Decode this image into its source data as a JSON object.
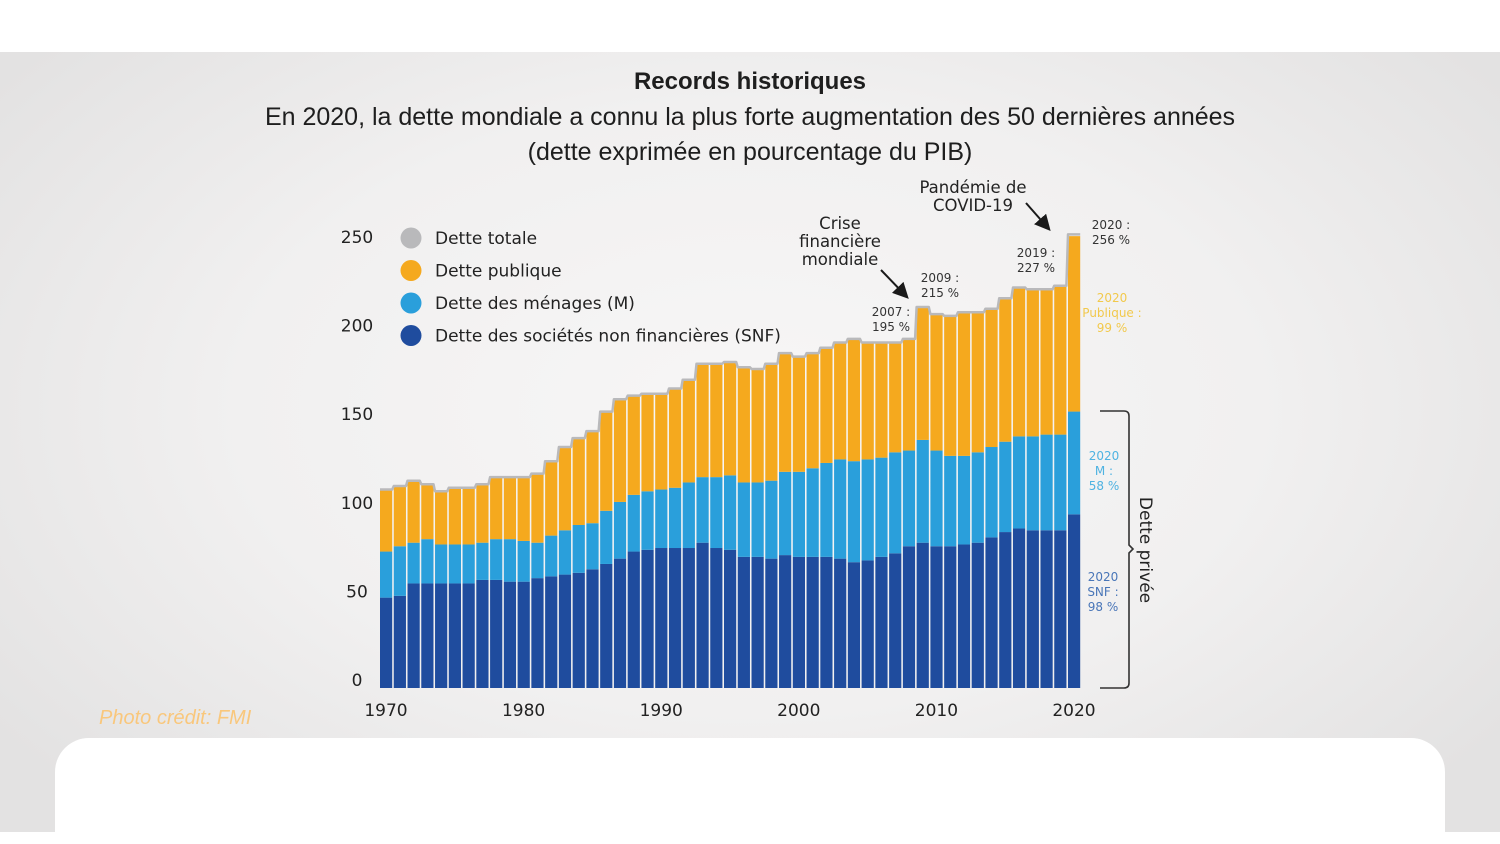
{
  "header": {
    "title": "Records historiques",
    "subtitle": "En 2020, la dette mondiale a connu la plus forte augmentation des 50 dernières années",
    "subtitle2": "(dette exprimée en pourcentage du PIB)"
  },
  "credit": "Photo crédit: FMI",
  "colors": {
    "total": "#b9b9bb",
    "public": "#f5a91e",
    "households": "#2a9fdb",
    "corporate": "#1f4c9e",
    "separator": "#dff1fb",
    "annotation_public": "#f2c94c",
    "annotation_m": "#4fb3e2",
    "annotation_snf": "#4a76b8"
  },
  "chart_data": {
    "type": "bar",
    "stacked": true,
    "title": "",
    "xlabel": "",
    "ylabel": "",
    "ylim": [
      0,
      250
    ],
    "yticks": [
      0,
      50,
      100,
      150,
      200,
      250
    ],
    "xticks": [
      1970,
      1980,
      1990,
      2000,
      2010,
      2020
    ],
    "categories": [
      1970,
      1971,
      1972,
      1973,
      1974,
      1975,
      1976,
      1977,
      1978,
      1979,
      1980,
      1981,
      1982,
      1983,
      1984,
      1985,
      1986,
      1987,
      1988,
      1989,
      1990,
      1991,
      1992,
      1993,
      1994,
      1995,
      1996,
      1997,
      1998,
      1999,
      2000,
      2001,
      2002,
      2003,
      2004,
      2005,
      2006,
      2007,
      2008,
      2009,
      2010,
      2011,
      2012,
      2013,
      2014,
      2015,
      2016,
      2017,
      2018,
      2019,
      2020
    ],
    "legend_position": "top-left",
    "legend": [
      {
        "key": "total",
        "label": "Dette totale"
      },
      {
        "key": "public",
        "label": "Dette publique"
      },
      {
        "key": "households",
        "label": "Dette des ménages (M)"
      },
      {
        "key": "corporate",
        "label": "Dette des sociétés non financières (SNF)"
      }
    ],
    "series": [
      {
        "name": "Dette des sociétés non financières (SNF)",
        "key": "corporate",
        "values": [
          51,
          52,
          59,
          59,
          59,
          59,
          59,
          61,
          61,
          60,
          60,
          62,
          63,
          64,
          65,
          67,
          70,
          73,
          77,
          78,
          79,
          79,
          79,
          82,
          79,
          78,
          74,
          74,
          73,
          75,
          74,
          74,
          74,
          73,
          71,
          72,
          74,
          76,
          80,
          82,
          80,
          80,
          81,
          82,
          85,
          88,
          90,
          89,
          89,
          89,
          98
        ]
      },
      {
        "name": "Dette des ménages (M)",
        "key": "households",
        "values": [
          26,
          28,
          23,
          25,
          22,
          22,
          22,
          21,
          23,
          24,
          23,
          20,
          23,
          25,
          27,
          26,
          30,
          32,
          32,
          33,
          33,
          34,
          37,
          37,
          40,
          42,
          42,
          42,
          44,
          47,
          48,
          50,
          53,
          56,
          57,
          57,
          56,
          57,
          54,
          58,
          54,
          51,
          50,
          51,
          51,
          51,
          52,
          53,
          54,
          54,
          58
        ]
      },
      {
        "name": "Dette publique",
        "key": "public",
        "values": [
          35,
          34,
          35,
          31,
          30,
          32,
          32,
          33,
          35,
          35,
          36,
          39,
          42,
          47,
          49,
          52,
          56,
          58,
          56,
          55,
          54,
          56,
          58,
          64,
          64,
          64,
          65,
          64,
          66,
          67,
          65,
          65,
          65,
          66,
          69,
          66,
          65,
          62,
          63,
          75,
          77,
          79,
          81,
          79,
          78,
          81,
          84,
          83,
          82,
          84,
          99
        ]
      },
      {
        "name": "Dette totale",
        "key": "total",
        "type": "line",
        "values": [
          112,
          114,
          117,
          115,
          111,
          113,
          113,
          115,
          119,
          119,
          119,
          121,
          128,
          136,
          141,
          145,
          156,
          163,
          165,
          166,
          166,
          169,
          174,
          183,
          183,
          184,
          181,
          180,
          183,
          189,
          187,
          189,
          192,
          195,
          197,
          195,
          195,
          195,
          197,
          215,
          211,
          210,
          212,
          212,
          214,
          220,
          226,
          225,
          225,
          227,
          256
        ]
      }
    ],
    "annotations": [
      {
        "id": "crisis",
        "text": [
          "Crise",
          "financière",
          "mondiale"
        ]
      },
      {
        "id": "covid",
        "text": [
          "Pandémie de",
          "COVID-19"
        ]
      },
      {
        "id": "y2007",
        "text": [
          "2007 :",
          "195 %"
        ]
      },
      {
        "id": "y2009",
        "text": [
          "2009 :",
          "215 %"
        ]
      },
      {
        "id": "y2019",
        "text": [
          "2019 :",
          "227 %"
        ]
      },
      {
        "id": "y2020",
        "text": [
          "2020 :",
          "256 %"
        ]
      },
      {
        "id": "pub2020",
        "text": [
          "2020",
          "Publique :",
          "99 %"
        ]
      },
      {
        "id": "m2020",
        "text": [
          "2020",
          "M :",
          "58 %"
        ]
      },
      {
        "id": "snf2020",
        "text": [
          "2020",
          "SNF :",
          "98 %"
        ]
      },
      {
        "id": "private",
        "text": [
          "Dette privée"
        ]
      }
    ]
  }
}
